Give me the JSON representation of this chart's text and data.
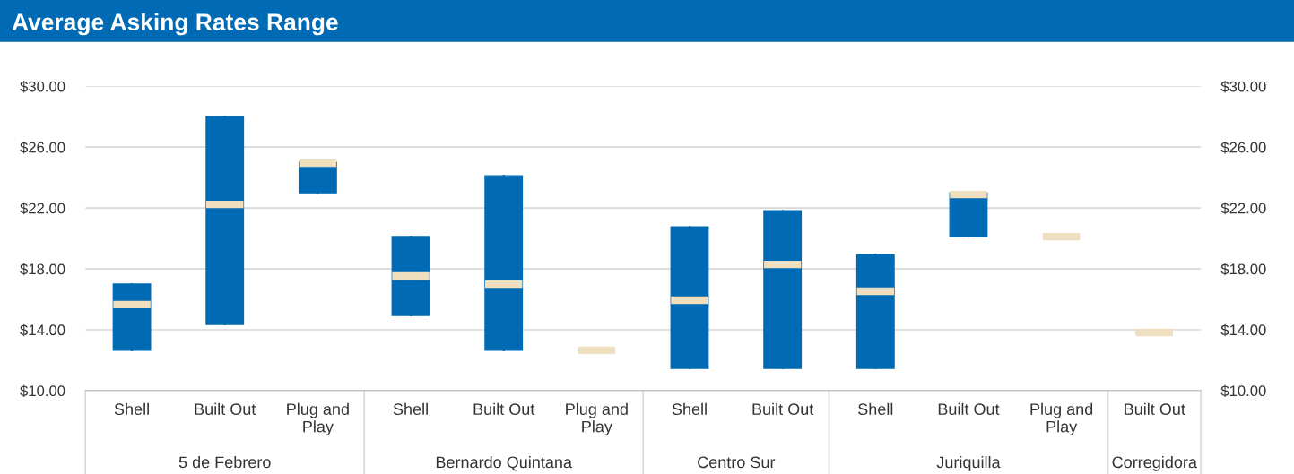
{
  "chart_data": {
    "type": "box",
    "title": "Average Asking Rates Range",
    "categories": [
      "Shell",
      "Built Out",
      "Plug and Play",
      "Shell",
      "Built Out",
      "Plug and Play",
      "Shell",
      "Built Out",
      "Shell",
      "Built Out",
      "Plug and Play",
      "Built Out"
    ],
    "series": [
      {
        "color": "#006ab4",
        "boxes": [
          {
            "low": 12.65,
            "q1": 12.65,
            "median": 15.65,
            "q3": 17.0,
            "high": 17.0
          },
          {
            "low": 14.35,
            "q1": 14.35,
            "median": 22.24,
            "q3": 28.0,
            "high": 28.0
          },
          {
            "low": 23.0,
            "q1": 23.0,
            "median": 24.94,
            "q3": 25.0,
            "high": 25.0
          },
          {
            "low": 14.94,
            "q1": 14.94,
            "median": 17.53,
            "q3": 20.12,
            "high": 20.12
          },
          {
            "low": 12.65,
            "q1": 12.65,
            "median": 17.0,
            "q3": 24.12,
            "high": 24.12
          },
          {
            "low": 12.65,
            "q1": 12.65,
            "median": 12.65,
            "q3": 12.65,
            "high": 12.65
          },
          {
            "low": 11.47,
            "q1": 11.47,
            "median": 15.94,
            "q3": 20.76,
            "high": 20.76
          },
          {
            "low": 11.47,
            "q1": 11.47,
            "median": 18.29,
            "q3": 21.82,
            "high": 21.82
          },
          {
            "low": 11.47,
            "q1": 11.47,
            "median": 16.53,
            "q3": 18.94,
            "high": 18.94
          },
          {
            "low": 20.12,
            "q1": 20.12,
            "median": 22.88,
            "q3": 23.0,
            "high": 23.0
          },
          {
            "low": 20.12,
            "q1": 20.12,
            "median": 20.12,
            "q3": 20.12,
            "high": 20.12
          },
          {
            "low": 13.82,
            "q1": 13.82,
            "median": 13.82,
            "q3": 13.82,
            "high": 13.82
          }
        ]
      }
    ],
    "ylim": [
      10,
      30
    ],
    "yticks": [
      {
        "value": 10,
        "label": "$10.00"
      },
      {
        "value": 14,
        "label": "$14.00"
      },
      {
        "value": 18,
        "label": "$18.00"
      },
      {
        "value": 22,
        "label": "$22.00"
      },
      {
        "value": 26,
        "label": "$26.00"
      },
      {
        "value": 30,
        "label": "$30.00"
      }
    ],
    "y2lim": [
      10,
      30
    ],
    "y2ticks": [
      {
        "value": 10,
        "label": "$10.00"
      },
      {
        "value": 14,
        "label": "$14.00"
      },
      {
        "value": 18,
        "label": "$18.00"
      },
      {
        "value": 22,
        "label": "$22.00"
      },
      {
        "value": 26,
        "label": "$26.00"
      },
      {
        "value": 30,
        "label": "$30.00"
      }
    ],
    "grid": "y",
    "annotations": [
      "5 de Febrero",
      "Bernardo Quintana",
      "Centro Sur",
      "Juriquilla",
      "Corregidora"
    ]
  }
}
